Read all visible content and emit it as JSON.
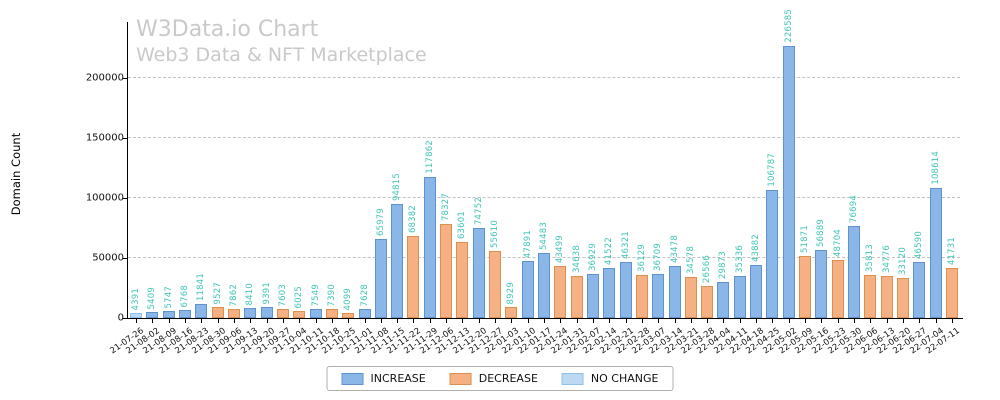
{
  "header": {
    "title": "W3Data.io Chart",
    "subtitle": "Web3 Data & NFT Marketplace"
  },
  "chart_data": {
    "type": "bar",
    "title": "W3Data.io Chart",
    "subtitle": "Web3 Data & NFT Marketplace",
    "xlabel": "",
    "ylabel": "Domain Count",
    "ylim": [
      0,
      235000
    ],
    "yticks": [
      0,
      50000,
      100000,
      150000,
      200000
    ],
    "grid": "horizontal-dashed",
    "legend_position": "bottom-center",
    "categories": [
      "21-07-26",
      "21-08-02",
      "21-08-09",
      "21-08-16",
      "21-08-23",
      "21-08-30",
      "21-09-06",
      "21-09-13",
      "21-09-20",
      "21-09-27",
      "21-10-04",
      "21-10-11",
      "21-10-18",
      "21-10-25",
      "21-11-01",
      "21-11-08",
      "21-11-15",
      "21-11-22",
      "21-11-29",
      "21-12-06",
      "21-12-13",
      "21-12-20",
      "21-12-27",
      "22-01-03",
      "22-01-10",
      "22-01-17",
      "22-01-24",
      "22-01-31",
      "22-02-07",
      "22-02-14",
      "22-02-21",
      "22-02-28",
      "22-03-07",
      "22-03-14",
      "22-03-21",
      "22-03-28",
      "22-04-04",
      "22-04-11",
      "22-04-18",
      "22-04-25",
      "22-05-02",
      "22-05-09",
      "22-05-16",
      "22-05-23",
      "22-05-30",
      "22-06-06",
      "22-06-13",
      "22-06-20",
      "22-06-27",
      "22-07-04",
      "22-07-11"
    ],
    "values": [
      4391,
      5409,
      5747,
      6768,
      11841,
      9527,
      7862,
      8410,
      9391,
      7603,
      6025,
      7549,
      7390,
      4099,
      7628,
      65979,
      94815,
      68382,
      117862,
      78327,
      63601,
      74752,
      55610,
      8929,
      47891,
      54483,
      43499,
      34638,
      36929,
      41522,
      46321,
      36129,
      36709,
      43478,
      34578,
      26566,
      29873,
      35336,
      43882,
      106787,
      226585,
      51871,
      56889,
      48704,
      76694,
      35813,
      34776,
      33120,
      46590,
      108614,
      41731
    ],
    "statuses": [
      "no_change",
      "increase",
      "increase",
      "increase",
      "increase",
      "decrease",
      "decrease",
      "increase",
      "increase",
      "decrease",
      "decrease",
      "increase",
      "decrease",
      "decrease",
      "increase",
      "increase",
      "increase",
      "decrease",
      "increase",
      "decrease",
      "decrease",
      "increase",
      "decrease",
      "decrease",
      "increase",
      "increase",
      "decrease",
      "decrease",
      "increase",
      "increase",
      "increase",
      "decrease",
      "increase",
      "increase",
      "decrease",
      "decrease",
      "increase",
      "increase",
      "increase",
      "increase",
      "increase",
      "decrease",
      "increase",
      "decrease",
      "increase",
      "decrease",
      "decrease",
      "decrease",
      "increase",
      "increase",
      "decrease"
    ],
    "value_label_color": "#3fc5b7"
  },
  "legend": {
    "items": [
      {
        "label": "INCREASE",
        "status": "increase"
      },
      {
        "label": "DECREASE",
        "status": "decrease"
      },
      {
        "label": "NO CHANGE",
        "status": "no_change"
      }
    ]
  },
  "colors": {
    "increase": {
      "fill": "#8ab6e8",
      "edge": "#5f93cf"
    },
    "decrease": {
      "fill": "#f5b183",
      "edge": "#dd8f4f"
    },
    "no_change": {
      "fill": "#bdd9f1",
      "edge": "#8fc0e8"
    },
    "grid": "#c2c2c2",
    "title_gray": "#c9c9c9"
  }
}
